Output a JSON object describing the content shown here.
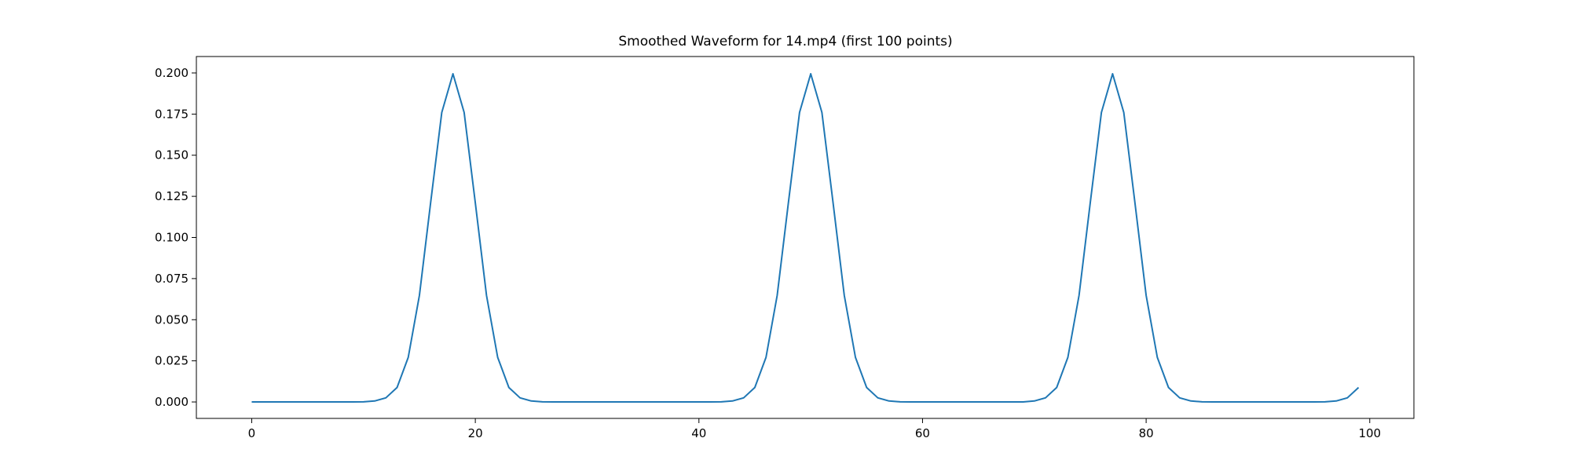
{
  "chart_data": {
    "type": "line",
    "title": "Smoothed Waveform for 14.mp4 (first 100 points)",
    "xlabel": "",
    "ylabel": "",
    "xlim": [
      -4.95,
      103.95
    ],
    "ylim": [
      -0.01,
      0.21
    ],
    "xticks": [
      0,
      20,
      40,
      60,
      80,
      100
    ],
    "xtick_labels": [
      "0",
      "20",
      "40",
      "60",
      "80",
      "100"
    ],
    "yticks": [
      0.0,
      0.025,
      0.05,
      0.075,
      0.1,
      0.125,
      0.15,
      0.175,
      0.2
    ],
    "ytick_labels": [
      "0.000",
      "0.025",
      "0.050",
      "0.075",
      "0.100",
      "0.125",
      "0.150",
      "0.175",
      "0.200"
    ],
    "grid": false,
    "legend": "none",
    "series": [
      {
        "color": "#1f77b4",
        "x": [
          0,
          1,
          2,
          3,
          4,
          5,
          6,
          7,
          8,
          9,
          10,
          11,
          12,
          13,
          14,
          15,
          16,
          17,
          18,
          19,
          20,
          21,
          22,
          23,
          24,
          25,
          26,
          27,
          28,
          29,
          30,
          31,
          32,
          33,
          34,
          35,
          36,
          37,
          38,
          39,
          40,
          41,
          42,
          43,
          44,
          45,
          46,
          47,
          48,
          49,
          50,
          51,
          52,
          53,
          54,
          55,
          56,
          57,
          58,
          59,
          60,
          61,
          62,
          63,
          64,
          65,
          66,
          67,
          68,
          69,
          70,
          71,
          72,
          73,
          74,
          75,
          76,
          77,
          78,
          79,
          80,
          81,
          82,
          83,
          84,
          85,
          86,
          87,
          88,
          89,
          90,
          91,
          92,
          93,
          94,
          95,
          96,
          97,
          98,
          99
        ],
        "values": [
          0,
          0,
          0,
          0,
          0,
          0,
          0,
          0,
          0,
          0,
          0.0001,
          0.0006,
          0.0025,
          0.0088,
          0.0271,
          0.0648,
          0.121,
          0.176,
          0.1995,
          0.176,
          0.121,
          0.0648,
          0.0271,
          0.0088,
          0.0025,
          0.0006,
          0.0001,
          0,
          0,
          0,
          0,
          0,
          0,
          0,
          0,
          0,
          0,
          0,
          0,
          0,
          0,
          0,
          0.0001,
          0.0006,
          0.0025,
          0.0088,
          0.0271,
          0.0648,
          0.121,
          0.176,
          0.1995,
          0.176,
          0.121,
          0.0648,
          0.0271,
          0.0088,
          0.0025,
          0.0006,
          0.0001,
          0,
          0,
          0,
          0,
          0,
          0,
          0,
          0,
          0,
          0,
          0,
          0.0006,
          0.0025,
          0.0088,
          0.0271,
          0.0648,
          0.121,
          0.176,
          0.1995,
          0.176,
          0.121,
          0.0648,
          0.0271,
          0.0088,
          0.0025,
          0.0006,
          0.0001,
          0,
          0,
          0,
          0,
          0,
          0,
          0,
          0,
          0,
          0,
          0.0001,
          0.0006,
          0.0025,
          0.0088
        ]
      }
    ]
  }
}
